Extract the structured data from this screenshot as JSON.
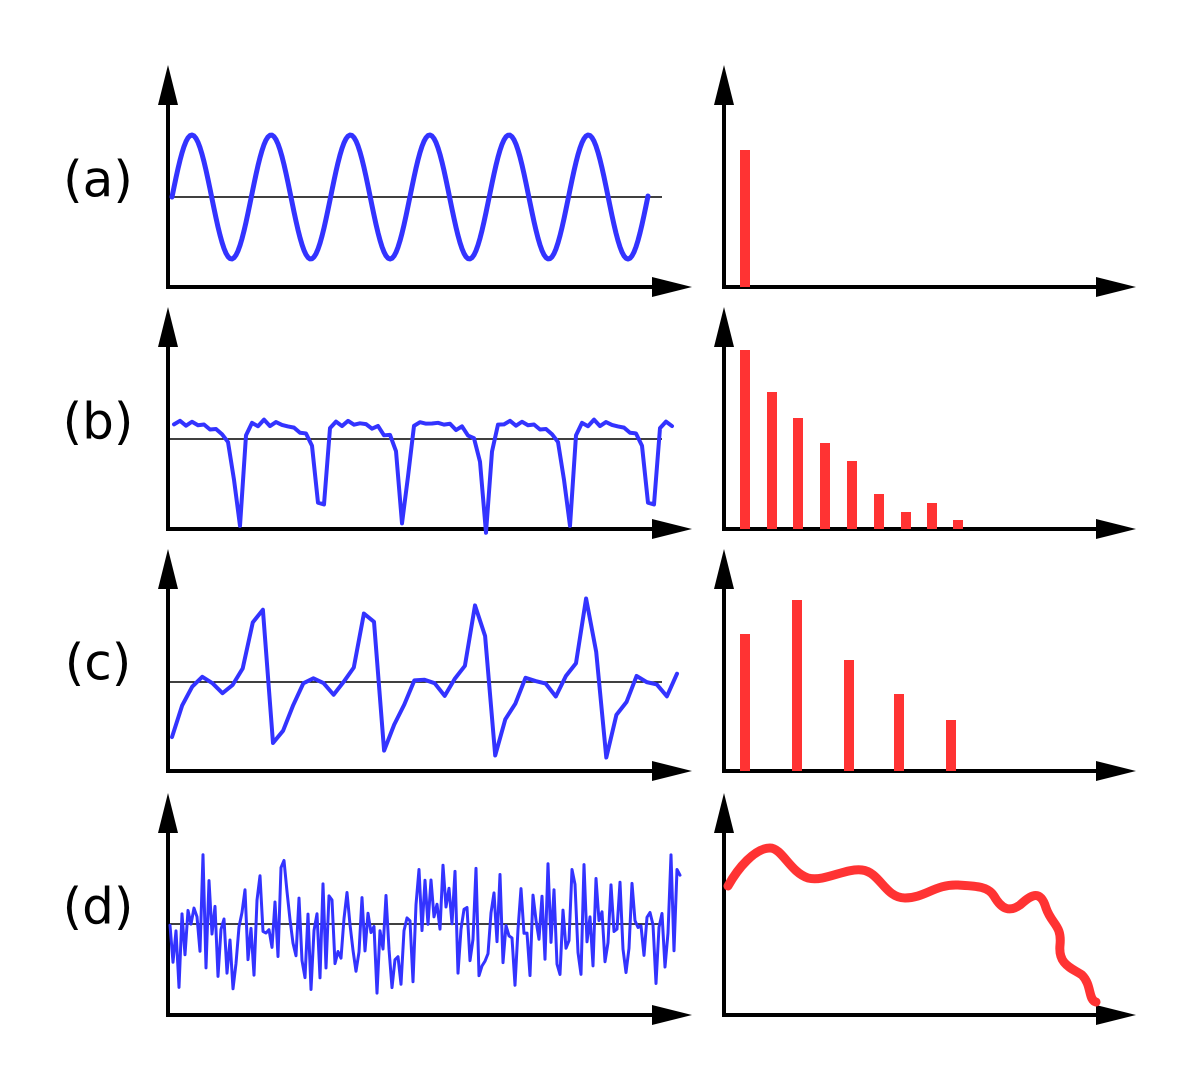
{
  "rows": [
    {
      "label": "(a)"
    },
    {
      "label": "(b)"
    },
    {
      "label": "(c)"
    },
    {
      "label": "(d)"
    }
  ]
}
